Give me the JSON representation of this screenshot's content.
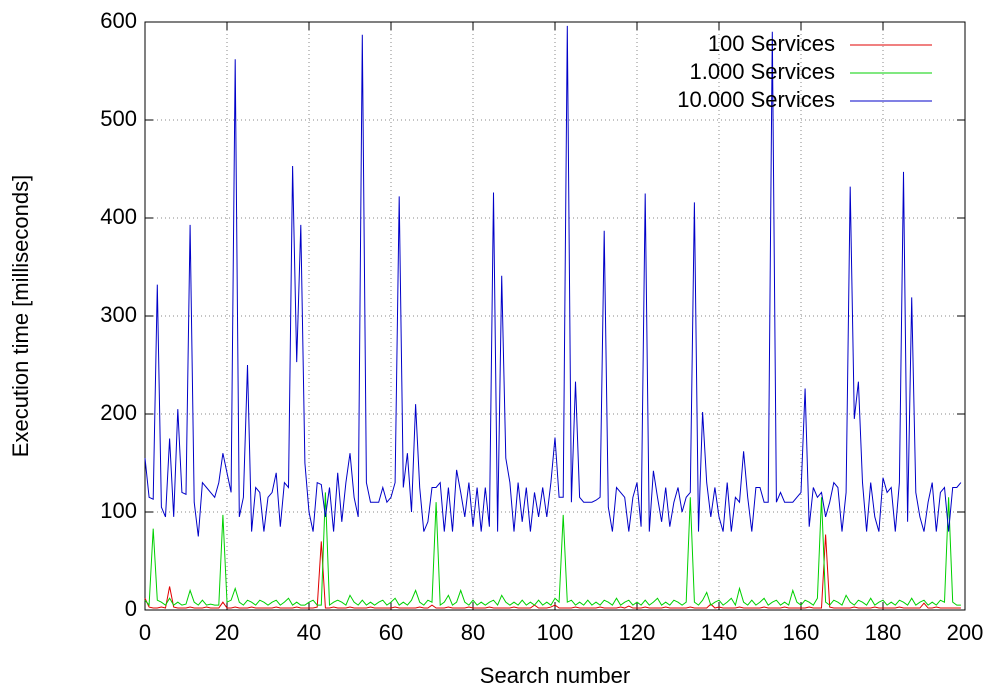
{
  "chart_data": {
    "type": "line",
    "xlabel": "Search number",
    "ylabel": "Execution time [milliseconds]",
    "xlim": [
      0,
      200
    ],
    "xticks": [
      0,
      20,
      40,
      60,
      80,
      100,
      120,
      140,
      160,
      180,
      200
    ],
    "ylim": [
      0,
      600
    ],
    "yticks": [
      0,
      100,
      200,
      300,
      400,
      500,
      600
    ],
    "grid": true,
    "legend": "top-right",
    "x": [
      0,
      1,
      2,
      3,
      4,
      5,
      6,
      7,
      8,
      9,
      10,
      11,
      12,
      13,
      14,
      15,
      16,
      17,
      18,
      19,
      20,
      21,
      22,
      23,
      24,
      25,
      26,
      27,
      28,
      29,
      30,
      31,
      32,
      33,
      34,
      35,
      36,
      37,
      38,
      39,
      40,
      41,
      42,
      43,
      44,
      45,
      46,
      47,
      48,
      49,
      50,
      51,
      52,
      53,
      54,
      55,
      56,
      57,
      58,
      59,
      60,
      61,
      62,
      63,
      64,
      65,
      66,
      67,
      68,
      69,
      70,
      71,
      72,
      73,
      74,
      75,
      76,
      77,
      78,
      79,
      80,
      81,
      82,
      83,
      84,
      85,
      86,
      87,
      88,
      89,
      90,
      91,
      92,
      93,
      94,
      95,
      96,
      97,
      98,
      99,
      100,
      101,
      102,
      103,
      104,
      105,
      106,
      107,
      108,
      109,
      110,
      111,
      112,
      113,
      114,
      115,
      116,
      117,
      118,
      119,
      120,
      121,
      122,
      123,
      124,
      125,
      126,
      127,
      128,
      129,
      130,
      131,
      132,
      133,
      134,
      135,
      136,
      137,
      138,
      139,
      140,
      141,
      142,
      143,
      144,
      145,
      146,
      147,
      148,
      149,
      150,
      151,
      152,
      153,
      154,
      155,
      156,
      157,
      158,
      159,
      160,
      161,
      162,
      163,
      164,
      165,
      166,
      167,
      168,
      169,
      170,
      171,
      172,
      173,
      174,
      175,
      176,
      177,
      178,
      179,
      180,
      181,
      182,
      183,
      184,
      185,
      186,
      187,
      188,
      189,
      190,
      191,
      192,
      193,
      194,
      195,
      196,
      197,
      198,
      199
    ],
    "series": [
      {
        "name": "100 Services",
        "color": "#e00000",
        "values": [
          12,
          3,
          2,
          2,
          3,
          2,
          24,
          3,
          2,
          2,
          2,
          3,
          2,
          2,
          2,
          3,
          2,
          2,
          2,
          8,
          2,
          2,
          3,
          2,
          2,
          2,
          3,
          2,
          2,
          2,
          2,
          2,
          3,
          2,
          2,
          2,
          2,
          3,
          2,
          2,
          2,
          2,
          3,
          70,
          2,
          2,
          3,
          2,
          2,
          2,
          3,
          2,
          2,
          2,
          2,
          3,
          2,
          2,
          2,
          2,
          2,
          3,
          2,
          2,
          2,
          2,
          2,
          3,
          2,
          2,
          5,
          2,
          2,
          2,
          3,
          2,
          2,
          2,
          2,
          3,
          2,
          2,
          2,
          2,
          3,
          2,
          2,
          2,
          2,
          2,
          3,
          2,
          2,
          2,
          2,
          5,
          2,
          2,
          2,
          3,
          5,
          2,
          2,
          2,
          2,
          3,
          2,
          2,
          2,
          2,
          2,
          3,
          2,
          2,
          2,
          2,
          3,
          2,
          4,
          2,
          2,
          2,
          3,
          2,
          2,
          2,
          2,
          3,
          2,
          2,
          2,
          2,
          2,
          3,
          2,
          2,
          2,
          2,
          6,
          2,
          3,
          2,
          2,
          2,
          2,
          3,
          2,
          2,
          2,
          2,
          2,
          3,
          2,
          2,
          2,
          2,
          3,
          2,
          2,
          2,
          2,
          2,
          3,
          2,
          2,
          2,
          77,
          3,
          2,
          2,
          2,
          2,
          2,
          3,
          2,
          2,
          2,
          2,
          3,
          2,
          2,
          2,
          2,
          2,
          3,
          2,
          2,
          2,
          2,
          2,
          7,
          2,
          2,
          3,
          2,
          2,
          2,
          2,
          2,
          2
        ]
      },
      {
        "name": "1.000 Services",
        "color": "#00d000",
        "values": [
          10,
          5,
          83,
          10,
          8,
          5,
          12,
          5,
          8,
          5,
          6,
          20,
          8,
          5,
          10,
          5,
          6,
          5,
          5,
          97,
          8,
          10,
          22,
          8,
          5,
          10,
          8,
          5,
          10,
          8,
          5,
          8,
          10,
          5,
          8,
          12,
          5,
          8,
          5,
          5,
          8,
          10,
          5,
          5,
          120,
          5,
          8,
          10,
          8,
          5,
          15,
          8,
          5,
          10,
          5,
          8,
          5,
          8,
          10,
          5,
          8,
          12,
          5,
          8,
          5,
          10,
          20,
          8,
          5,
          10,
          8,
          110,
          5,
          8,
          15,
          5,
          8,
          20,
          8,
          5,
          10,
          5,
          8,
          5,
          8,
          10,
          5,
          15,
          8,
          5,
          8,
          5,
          10,
          5,
          8,
          5,
          10,
          5,
          8,
          5,
          12,
          8,
          97,
          8,
          10,
          5,
          8,
          5,
          10,
          5,
          8,
          5,
          10,
          8,
          5,
          12,
          5,
          8,
          10,
          5,
          8,
          5,
          10,
          5,
          8,
          12,
          5,
          8,
          5,
          10,
          8,
          5,
          8,
          115,
          8,
          5,
          10,
          18,
          5,
          8,
          10,
          5,
          8,
          12,
          5,
          22,
          8,
          5,
          10,
          5,
          8,
          12,
          5,
          8,
          10,
          5,
          8,
          5,
          20,
          8,
          5,
          10,
          8,
          5,
          12,
          115,
          8,
          5,
          10,
          8,
          5,
          15,
          8,
          5,
          10,
          8,
          5,
          12,
          5,
          8,
          10,
          5,
          8,
          5,
          10,
          8,
          5,
          12,
          5,
          8,
          10,
          5,
          8,
          5,
          10,
          8,
          115,
          8,
          5,
          5
        ]
      },
      {
        "name": "10.000 Services",
        "color": "#0000c8",
        "values": [
          155,
          115,
          113,
          332,
          105,
          95,
          175,
          95,
          205,
          120,
          118,
          393,
          110,
          75,
          130,
          125,
          120,
          115,
          130,
          160,
          140,
          120,
          562,
          95,
          115,
          250,
          80,
          125,
          120,
          80,
          115,
          120,
          140,
          85,
          130,
          125,
          453,
          253,
          393,
          150,
          100,
          80,
          130,
          128,
          95,
          125,
          80,
          140,
          90,
          130,
          160,
          115,
          95,
          587,
          130,
          110,
          110,
          110,
          125,
          110,
          115,
          130,
          422,
          125,
          160,
          100,
          210,
          125,
          80,
          90,
          125,
          125,
          130,
          80,
          125,
          80,
          143,
          120,
          95,
          130,
          85,
          125,
          80,
          125,
          85,
          426,
          80,
          341,
          155,
          130,
          80,
          130,
          90,
          125,
          80,
          120,
          95,
          125,
          95,
          130,
          176,
          115,
          115,
          596,
          110,
          233,
          115,
          110,
          110,
          110,
          112,
          115,
          387,
          105,
          80,
          125,
          120,
          115,
          80,
          115,
          130,
          85,
          425,
          80,
          142,
          115,
          90,
          125,
          85,
          110,
          125,
          100,
          115,
          120,
          416,
          80,
          202,
          130,
          95,
          125,
          95,
          80,
          130,
          80,
          115,
          110,
          162,
          115,
          80,
          125,
          125,
          110,
          110,
          590,
          110,
          120,
          110,
          110,
          110,
          115,
          120,
          226,
          85,
          125,
          115,
          120,
          95,
          110,
          130,
          125,
          80,
          120,
          432,
          195,
          233,
          130,
          80,
          130,
          95,
          80,
          135,
          120,
          125,
          80,
          130,
          447,
          90,
          319,
          120,
          95,
          80,
          110,
          130,
          80,
          120,
          125,
          80,
          125,
          125,
          130
        ]
      }
    ]
  }
}
